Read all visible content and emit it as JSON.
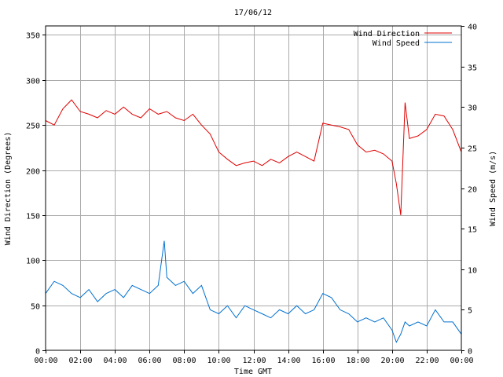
{
  "chart_data": {
    "type": "line",
    "title": "17/06/12",
    "xlabel": "Time GMT",
    "ylabel_left": "Wind Direction (Degrees)",
    "ylabel_right": "Wind Speed (m/s)",
    "x_tick_labels": [
      "00:00",
      "02:00",
      "04:00",
      "06:00",
      "08:00",
      "10:00",
      "12:00",
      "14:00",
      "16:00",
      "18:00",
      "20:00",
      "22:00",
      "00:00"
    ],
    "xlim_hours": [
      0,
      24
    ],
    "y_left": {
      "lim": [
        0,
        360
      ],
      "ticks": [
        0,
        50,
        100,
        150,
        200,
        250,
        300,
        350
      ]
    },
    "y_right": {
      "lim": [
        0,
        40
      ],
      "ticks": [
        0,
        5,
        10,
        15,
        20,
        25,
        30,
        35,
        40
      ]
    },
    "grid": true,
    "legend_position": "top-right",
    "series": [
      {
        "name": "Wind Direction",
        "axis": "left",
        "color": "#e00000",
        "hours": [
          0,
          0.5,
          1,
          1.5,
          2,
          2.5,
          3,
          3.5,
          4,
          4.5,
          5,
          5.5,
          6,
          6.5,
          7,
          7.5,
          8,
          8.5,
          9,
          9.5,
          10,
          10.5,
          11,
          11.5,
          12,
          12.5,
          13,
          13.5,
          14,
          14.5,
          15,
          15.5,
          16,
          16.5,
          17,
          17.5,
          18,
          18.5,
          19,
          19.5,
          20,
          20.25,
          20.5,
          20.75,
          21,
          21.5,
          22,
          22.5,
          23,
          23.5,
          24
        ],
        "values": [
          255,
          250,
          268,
          278,
          265,
          262,
          258,
          266,
          262,
          270,
          262,
          258,
          268,
          262,
          265,
          258,
          255,
          262,
          250,
          240,
          220,
          212,
          205,
          208,
          210,
          205,
          212,
          208,
          215,
          220,
          215,
          210,
          252,
          250,
          248,
          245,
          228,
          220,
          222,
          218,
          210,
          185,
          150,
          275,
          235,
          238,
          245,
          262,
          260,
          245,
          220
        ]
      },
      {
        "name": "Wind Speed",
        "axis": "right",
        "color": "#0070d0",
        "hours": [
          0,
          0.5,
          1,
          1.5,
          2,
          2.5,
          3,
          3.5,
          4,
          4.5,
          5,
          5.5,
          6,
          6.5,
          6.85,
          7,
          7.5,
          8,
          8.5,
          9,
          9.5,
          10,
          10.5,
          11,
          11.5,
          12,
          12.5,
          13,
          13.5,
          14,
          14.5,
          15,
          15.5,
          16,
          16.5,
          17,
          17.5,
          18,
          18.5,
          19,
          19.5,
          20,
          20.25,
          20.5,
          20.75,
          21,
          21.5,
          22,
          22.5,
          23,
          23.5,
          24
        ],
        "values": [
          7,
          8.5,
          8,
          7,
          6.5,
          7.5,
          6,
          7,
          7.5,
          6.5,
          8,
          7.5,
          7,
          8,
          13.5,
          9,
          8,
          8.5,
          7,
          8,
          5,
          4.5,
          5.5,
          4,
          5.5,
          5,
          4.5,
          4,
          5,
          4.5,
          5.5,
          4.5,
          5,
          7,
          6.5,
          5,
          4.5,
          3.5,
          4,
          3.5,
          4,
          2.5,
          1,
          2,
          3.5,
          3,
          3.5,
          3,
          5,
          3.5,
          3.5,
          2
        ]
      }
    ]
  }
}
